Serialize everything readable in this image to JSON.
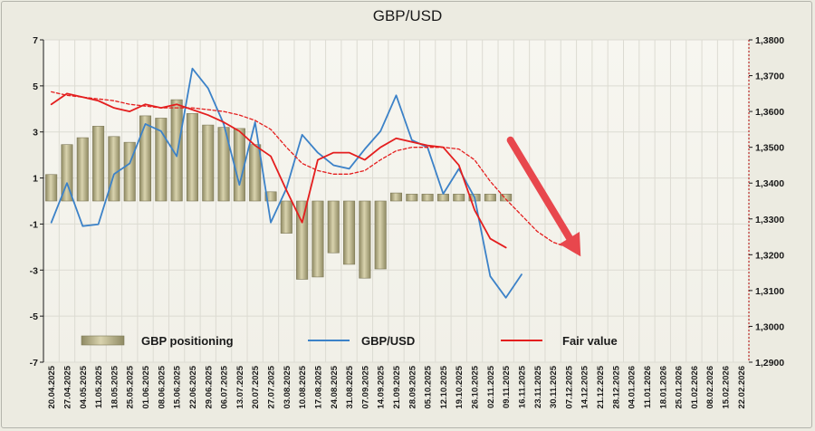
{
  "chart_data": {
    "type": "bar+line",
    "title": "GBP/USD",
    "x_dates": [
      "20.04.2025",
      "27.04.2025",
      "04.05.2025",
      "11.05.2025",
      "18.05.2025",
      "25.05.2025",
      "01.06.2025",
      "08.06.2025",
      "15.06.2025",
      "22.06.2025",
      "29.06.2025",
      "06.07.2025",
      "13.07.2025",
      "20.07.2025",
      "27.07.2025",
      "03.08.2025",
      "10.08.2025",
      "17.08.2025",
      "24.08.2025",
      "31.08.2025",
      "07.09.2025",
      "14.09.2025",
      "21.09.2025",
      "28.09.2025",
      "05.10.2025",
      "12.10.2025",
      "19.10.2025",
      "26.10.2025",
      "02.11.2025",
      "09.11.2025",
      "16.11.2025",
      "23.11.2025",
      "30.11.2025",
      "07.12.2025",
      "14.12.2025",
      "21.12.2025",
      "28.12.2025",
      "04.01.2026",
      "11.01.2026",
      "18.01.2026",
      "25.01.2026",
      "01.02.2026",
      "08.02.2026",
      "15.02.2026",
      "22.02.2026"
    ],
    "left_axis": {
      "min": -7,
      "max": 7,
      "ticks": [
        "7",
        "5",
        "3",
        "1",
        "-1",
        "-3",
        "-5",
        "-7"
      ]
    },
    "right_axis": {
      "min": 1.29,
      "max": 1.38,
      "ticks": [
        "1,3800",
        "1,3700",
        "1,3600",
        "1,3500",
        "1,3400",
        "1,3300",
        "1,3200",
        "1,3100",
        "1,3000",
        "1,2900"
      ]
    },
    "series": [
      {
        "name": "GBP positioning",
        "kind": "bar",
        "axis": "left",
        "color": "#c9c29a",
        "values": [
          1.15,
          2.45,
          2.75,
          3.25,
          2.8,
          2.55,
          3.7,
          3.6,
          4.4,
          3.8,
          3.3,
          3.2,
          3.15,
          2.45,
          0.4,
          -1.4,
          -3.4,
          -3.3,
          -2.25,
          -2.75,
          -3.35,
          -2.95,
          0.35,
          0.3,
          0.3,
          0.3,
          0.3,
          0.3,
          0.3,
          0.3
        ]
      },
      {
        "name": "GBP/USD",
        "kind": "line",
        "axis": "right",
        "color": "#3c82c8",
        "values": [
          1.329,
          1.34,
          1.328,
          1.3285,
          1.3425,
          1.3455,
          1.3565,
          1.3545,
          1.3475,
          1.372,
          1.3665,
          1.3565,
          1.3395,
          1.357,
          1.329,
          1.3385,
          1.3535,
          1.3485,
          1.345,
          1.344,
          1.3495,
          1.3545,
          1.3645,
          1.352,
          1.35,
          1.337,
          1.344,
          1.336,
          1.314,
          1.308,
          1.3145
        ]
      },
      {
        "name": "Fair value",
        "kind": "line",
        "axis": "right",
        "color": "#e41e1e",
        "values": [
          1.362,
          1.365,
          1.364,
          1.363,
          1.361,
          1.36,
          1.362,
          1.361,
          1.362,
          1.3605,
          1.359,
          1.357,
          1.3545,
          1.3505,
          1.3475,
          1.338,
          1.329,
          1.3465,
          1.3485,
          1.3485,
          1.3465,
          1.35,
          1.3525,
          1.3515,
          1.3505,
          1.35,
          1.345,
          1.3325,
          1.3245,
          1.322
        ]
      },
      {
        "name": "",
        "kind": "line",
        "style": "dashed",
        "axis": "right",
        "color": "#e41e1e",
        "values": [
          1.3655,
          1.3645,
          1.364,
          1.3635,
          1.363,
          1.362,
          1.3615,
          1.361,
          1.361,
          1.361,
          1.3605,
          1.36,
          1.359,
          1.3575,
          1.355,
          1.35,
          1.3455,
          1.3435,
          1.3425,
          1.3425,
          1.3435,
          1.3465,
          1.349,
          1.35,
          1.35,
          1.35,
          1.3495,
          1.3465,
          1.3405,
          1.3355,
          1.331,
          1.3265,
          1.3235,
          1.322
        ]
      }
    ],
    "arrow": {
      "color": "#e8474d",
      "from_x": "09.11.2025",
      "from_y": 1.352,
      "to_x": "14.12.2025",
      "to_y": 1.3195
    },
    "legend": [
      {
        "label": "GBP positioning",
        "kind": "bar"
      },
      {
        "label": "GBP/USD",
        "kind": "line",
        "color": "#3c82c8"
      },
      {
        "label": "Fair value",
        "kind": "line",
        "color": "#e41e1e"
      }
    ],
    "grid": true,
    "legend_position": "bottom-inside"
  }
}
